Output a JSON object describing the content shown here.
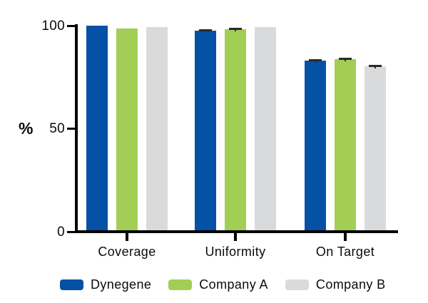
{
  "chart_data": {
    "type": "bar",
    "title": "",
    "xlabel": "",
    "ylabel": "%",
    "ylim": [
      0,
      100
    ],
    "yticks": [
      0,
      50,
      100
    ],
    "grid": false,
    "legend_position": "bottom",
    "categories": [
      "Coverage",
      "Uniformity",
      "On Target"
    ],
    "series": [
      {
        "name": "Dynegene",
        "color": "#0551A5",
        "values": [
          100.0,
          97.6,
          83.0
        ],
        "errors": [
          0,
          0.8,
          0.7
        ]
      },
      {
        "name": "Company A",
        "color": "#A2CE56",
        "values": [
          98.7,
          98.3,
          83.7
        ],
        "errors": [
          0,
          0.6,
          0.8
        ]
      },
      {
        "name": "Company B",
        "color": "#D9DADB",
        "values": [
          99.4,
          99.3,
          80.3
        ],
        "errors": [
          0,
          0.0,
          0.5
        ]
      }
    ]
  },
  "colors": {
    "axis": "#000000",
    "error_bar": "#2B2B2B",
    "text": "#0B0B0B"
  }
}
